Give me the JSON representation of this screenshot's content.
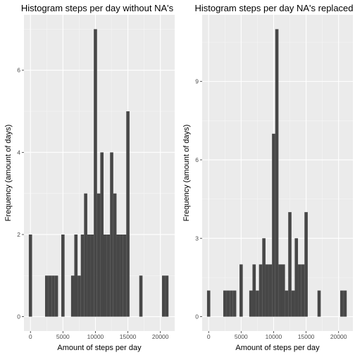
{
  "chart_data": [
    {
      "type": "bar",
      "title": "Histogram steps per day without NA's",
      "xlabel": "Amount of steps per day",
      "ylabel": "Frequency (amount of days)",
      "xlim": [
        -1000,
        22200
      ],
      "ylim": [
        -0.35,
        7.35
      ],
      "xticks": [
        0,
        5000,
        10000,
        15000,
        20000
      ],
      "yticks": [
        0,
        2,
        4,
        6
      ],
      "grid": true,
      "bin_width": 500,
      "bin_centers": [
        0,
        2500,
        3000,
        3500,
        4000,
        5000,
        6500,
        7000,
        7500,
        8000,
        8500,
        9000,
        9500,
        10000,
        10500,
        11000,
        11500,
        12000,
        12500,
        13000,
        13500,
        14000,
        14500,
        15000,
        17000,
        20500,
        21000
      ],
      "values": [
        2,
        1,
        1,
        1,
        1,
        2,
        1,
        2,
        1,
        2,
        3,
        2,
        2,
        7,
        3,
        4,
        2,
        2,
        4,
        3,
        2,
        2,
        2,
        5,
        1,
        1,
        1
      ],
      "colors": {
        "bar": "#474747",
        "panel": "#ebebeb",
        "grid_major": "#ffffff",
        "grid_minor": "#f5f5f5"
      }
    },
    {
      "type": "bar",
      "title": "Histogram steps per day NA's replaced",
      "xlabel": "Amount of steps per day",
      "ylabel": "Frequency (amount of days)",
      "xlim": [
        -1000,
        22200
      ],
      "ylim": [
        -0.55,
        11.55
      ],
      "xticks": [
        0,
        5000,
        10000,
        15000,
        20000
      ],
      "yticks": [
        0,
        3,
        6,
        9
      ],
      "grid": true,
      "bin_width": 500,
      "bin_centers": [
        0,
        2500,
        3000,
        3500,
        4000,
        5000,
        6500,
        7000,
        7500,
        8000,
        8500,
        9000,
        9500,
        10000,
        10500,
        11000,
        11500,
        12000,
        12500,
        13000,
        13500,
        14000,
        14500,
        15000,
        17000,
        20500,
        21000
      ],
      "values": [
        1,
        1,
        1,
        1,
        1,
        2,
        1,
        2,
        1,
        2,
        3,
        2,
        2,
        7,
        11,
        2,
        2,
        1,
        4,
        1,
        3,
        2,
        2,
        4,
        1,
        1,
        1
      ],
      "colors": {
        "bar": "#474747",
        "panel": "#ebebeb",
        "grid_major": "#ffffff",
        "grid_minor": "#f5f5f5"
      }
    }
  ]
}
